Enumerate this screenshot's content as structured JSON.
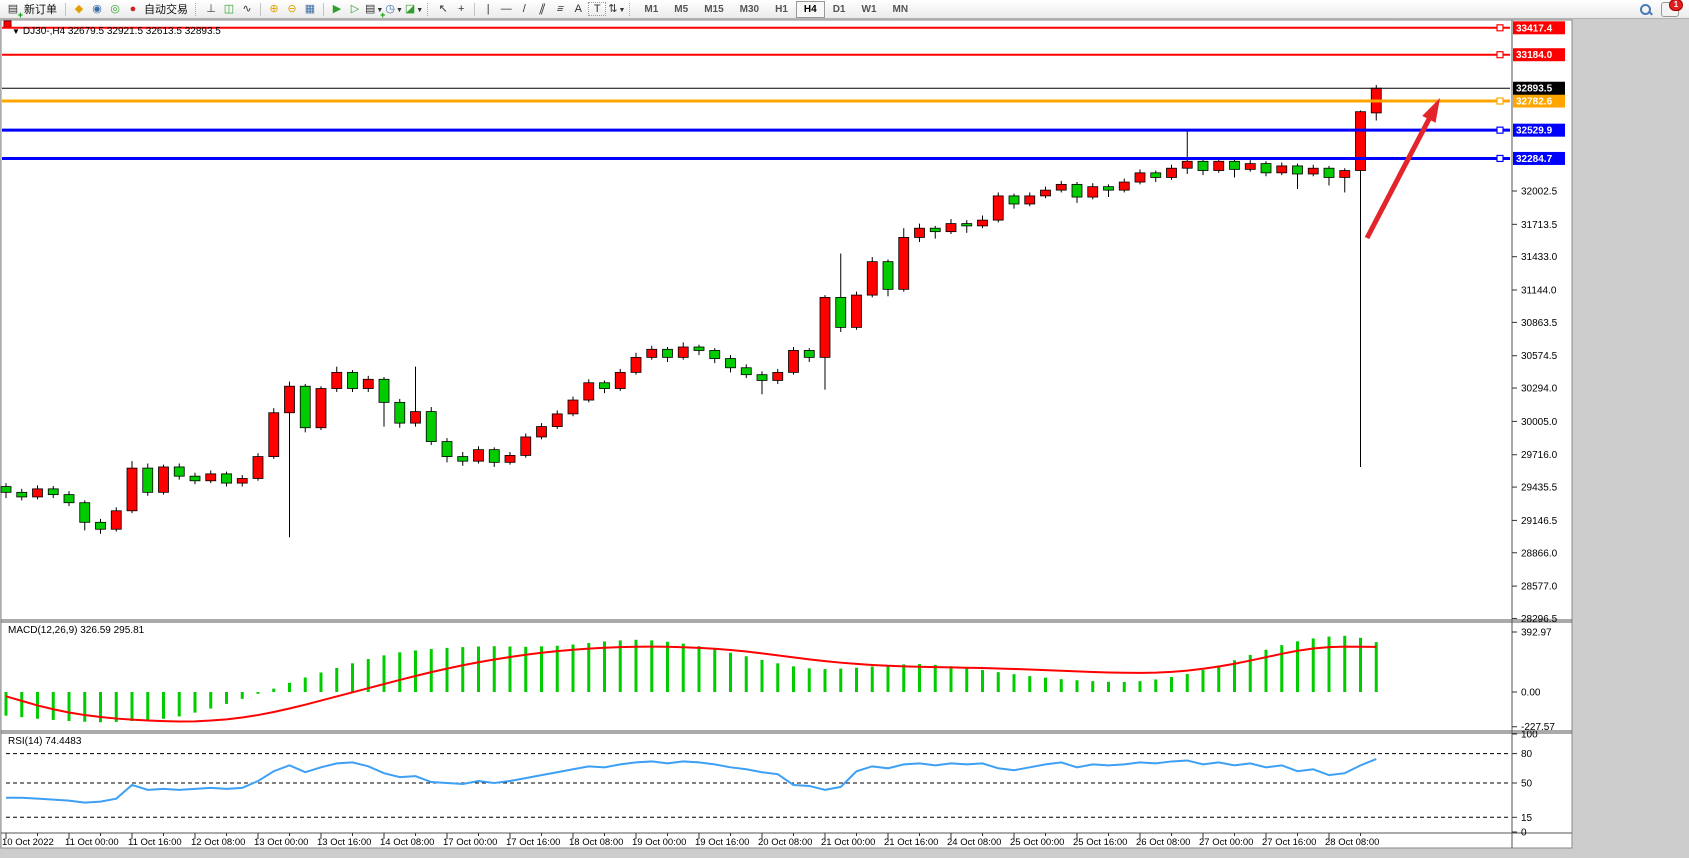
{
  "toolbar": {
    "new_order_label": "新订单",
    "auto_trading_label": "自动交易",
    "timeframes": [
      "M1",
      "M5",
      "M15",
      "M30",
      "H1",
      "H4",
      "D1",
      "W1",
      "MN"
    ],
    "active_timeframe": "H4",
    "notification_count": "1",
    "icons": {
      "new_order": "▤",
      "chart_wizard": "◆",
      "experts": "◉",
      "signals": "◎",
      "auto_trading": "●",
      "bar_chart": "⊥",
      "candle_chart": "◫",
      "line_chart": "∿",
      "zoom_in": "⊕",
      "zoom_out": "⊖",
      "tile_windows": "▦",
      "chart_shift": "▶",
      "auto_scroll": "▷",
      "new_chart": "▤",
      "clock": "◷",
      "chart_template": "◪",
      "cursor": "↖",
      "crosshair": "+",
      "vline": "|",
      "hline": "—",
      "trendline": "/",
      "channel": "∥",
      "fibonacci": "≡",
      "text": "A",
      "label": "T",
      "arrows": "⇅"
    }
  },
  "chart_data": {
    "type": "candlestick",
    "symbol": "DJ30-,H4",
    "ohlc_text": "32679.5 32921.5 32613.5 32893.5",
    "title": "DJ30-,H4  32679.5 32921.5 32613.5 32893.5",
    "colors": {
      "bull": "#ff0000",
      "bear": "#00cc00",
      "wick": "#000000",
      "level_red": "#ff0000",
      "level_orange": "#ffa500",
      "level_blue": "#0000ff",
      "bid_line": "#000000",
      "macd_hist": "#00cc00",
      "macd_signal": "#ff0000",
      "rsi_line": "#3da0f5",
      "arrow": "#e3242b"
    },
    "y_ticks": [
      32002.5,
      31713.5,
      31433.0,
      31144.0,
      30863.5,
      30574.5,
      30294.0,
      30005.0,
      29716.0,
      29435.5,
      29146.5,
      28866.0,
      28577.0,
      28296.5
    ],
    "price_levels": [
      {
        "price": 33417.4,
        "color": "#ff0000"
      },
      {
        "price": 33184.0,
        "color": "#ff0000"
      },
      {
        "price": 32782.6,
        "color": "#ffa500"
      },
      {
        "price": 32529.9,
        "color": "#0000ff"
      },
      {
        "price": 32284.7,
        "color": "#0000ff"
      }
    ],
    "bid_price": 32893.5,
    "x_labels": [
      "10 Oct 2022",
      "11 Oct 00:00",
      "11 Oct 16:00",
      "12 Oct 08:00",
      "13 Oct 00:00",
      "13 Oct 16:00",
      "14 Oct 08:00",
      "17 Oct 00:00",
      "17 Oct 16:00",
      "18 Oct 08:00",
      "19 Oct 00:00",
      "19 Oct 16:00",
      "20 Oct 08:00",
      "21 Oct 00:00",
      "21 Oct 16:00",
      "24 Oct 08:00",
      "25 Oct 00:00",
      "25 Oct 16:00",
      "26 Oct 08:00",
      "27 Oct 00:00",
      "27 Oct 16:00",
      "28 Oct 08:00"
    ],
    "x_label_bars": [
      0,
      4,
      8,
      12,
      16,
      20,
      24,
      28,
      32,
      36,
      40,
      44,
      48,
      52,
      56,
      60,
      64,
      68,
      72,
      76,
      80,
      84
    ],
    "bars": [
      [
        29440,
        29470,
        29340,
        29390
      ],
      [
        29390,
        29420,
        29320,
        29350
      ],
      [
        29350,
        29450,
        29330,
        29420
      ],
      [
        29420,
        29445,
        29340,
        29370
      ],
      [
        29370,
        29400,
        29270,
        29300
      ],
      [
        29300,
        29320,
        29060,
        29130
      ],
      [
        29130,
        29160,
        29030,
        29070
      ],
      [
        29070,
        29260,
        29050,
        29230
      ],
      [
        29230,
        29660,
        29210,
        29600
      ],
      [
        29600,
        29640,
        29360,
        29390
      ],
      [
        29390,
        29630,
        29370,
        29610
      ],
      [
        29610,
        29640,
        29500,
        29530
      ],
      [
        29530,
        29560,
        29460,
        29490
      ],
      [
        29490,
        29580,
        29470,
        29550
      ],
      [
        29550,
        29570,
        29440,
        29470
      ],
      [
        29470,
        29540,
        29440,
        29510
      ],
      [
        29510,
        29730,
        29490,
        29700
      ],
      [
        29700,
        30120,
        29680,
        30080
      ],
      [
        30080,
        30350,
        29000,
        30310
      ],
      [
        30310,
        30330,
        29910,
        29950
      ],
      [
        29950,
        30310,
        29930,
        30290
      ],
      [
        30290,
        30480,
        30260,
        30430
      ],
      [
        30430,
        30450,
        30260,
        30290
      ],
      [
        30290,
        30400,
        30260,
        30370
      ],
      [
        30370,
        30390,
        29960,
        30170
      ],
      [
        30170,
        30200,
        29950,
        29990
      ],
      [
        29990,
        30480,
        29960,
        30090
      ],
      [
        30090,
        30130,
        29800,
        29830
      ],
      [
        29830,
        29860,
        29650,
        29700
      ],
      [
        29700,
        29740,
        29620,
        29660
      ],
      [
        29660,
        29790,
        29640,
        29760
      ],
      [
        29760,
        29780,
        29610,
        29650
      ],
      [
        29650,
        29740,
        29630,
        29710
      ],
      [
        29710,
        29900,
        29690,
        29870
      ],
      [
        29870,
        29990,
        29850,
        29960
      ],
      [
        29960,
        30100,
        29940,
        30070
      ],
      [
        30070,
        30220,
        30050,
        30190
      ],
      [
        30190,
        30370,
        30170,
        30340
      ],
      [
        30340,
        30360,
        30250,
        30290
      ],
      [
        30290,
        30460,
        30270,
        30430
      ],
      [
        30430,
        30600,
        30410,
        30560
      ],
      [
        30560,
        30660,
        30540,
        30630
      ],
      [
        30630,
        30650,
        30520,
        30560
      ],
      [
        30560,
        30690,
        30540,
        30650
      ],
      [
        30650,
        30670,
        30580,
        30620
      ],
      [
        30620,
        30640,
        30510,
        30550
      ],
      [
        30550,
        30580,
        30430,
        30470
      ],
      [
        30470,
        30500,
        30380,
        30410
      ],
      [
        30410,
        30440,
        30240,
        30360
      ],
      [
        30360,
        30460,
        30330,
        30430
      ],
      [
        30430,
        30650,
        30410,
        30620
      ],
      [
        30620,
        30640,
        30520,
        30560
      ],
      [
        30560,
        31100,
        30280,
        31080
      ],
      [
        31080,
        31460,
        30780,
        30820
      ],
      [
        30820,
        31130,
        30800,
        31100
      ],
      [
        31100,
        31430,
        31080,
        31390
      ],
      [
        31390,
        31410,
        31090,
        31150
      ],
      [
        31150,
        31680,
        31130,
        31600
      ],
      [
        31600,
        31720,
        31560,
        31680
      ],
      [
        31680,
        31700,
        31590,
        31650
      ],
      [
        31650,
        31760,
        31630,
        31720
      ],
      [
        31720,
        31750,
        31640,
        31700
      ],
      [
        31700,
        31790,
        31680,
        31750
      ],
      [
        31750,
        31990,
        31730,
        31960
      ],
      [
        31960,
        31980,
        31850,
        31890
      ],
      [
        31890,
        31990,
        31870,
        31960
      ],
      [
        31960,
        32040,
        31940,
        32010
      ],
      [
        32010,
        32090,
        31990,
        32060
      ],
      [
        32060,
        32080,
        31900,
        31950
      ],
      [
        31950,
        32070,
        31930,
        32040
      ],
      [
        32040,
        32060,
        31950,
        32010
      ],
      [
        32010,
        32110,
        31990,
        32080
      ],
      [
        32080,
        32190,
        32060,
        32160
      ],
      [
        32160,
        32180,
        32080,
        32120
      ],
      [
        32120,
        32230,
        32100,
        32200
      ],
      [
        32200,
        32530,
        32150,
        32260
      ],
      [
        32260,
        32280,
        32140,
        32180
      ],
      [
        32180,
        32290,
        32160,
        32260
      ],
      [
        32260,
        32280,
        32120,
        32190
      ],
      [
        32190,
        32270,
        32170,
        32240
      ],
      [
        32240,
        32260,
        32130,
        32160
      ],
      [
        32160,
        32250,
        32140,
        32220
      ],
      [
        32220,
        32240,
        32020,
        32150
      ],
      [
        32150,
        32230,
        32130,
        32200
      ],
      [
        32200,
        32220,
        32050,
        32120
      ],
      [
        32120,
        32200,
        31990,
        32180
      ],
      [
        32180,
        32700,
        29610,
        32690
      ],
      [
        32679.5,
        32921.5,
        32613.5,
        32893.5
      ]
    ],
    "indicators": {
      "macd": {
        "name": "MACD(12,26,9)",
        "main_value": "326.59",
        "signal_value": "295.81",
        "scale": [
          {
            "label": "392.97",
            "value": 392.97
          },
          {
            "label": "0.00",
            "value": 0
          },
          {
            "label": "-227.57",
            "value": -227.57
          }
        ],
        "histogram": [
          -155,
          -165,
          -175,
          -183,
          -190,
          -195,
          -198,
          -196,
          -190,
          -183,
          -175,
          -160,
          -135,
          -108,
          -78,
          -45,
          -12,
          22,
          60,
          95,
          128,
          158,
          188,
          216,
          240,
          260,
          272,
          281,
          289,
          294,
          298,
          300,
          298,
          296,
          299,
          303,
          311,
          321,
          331,
          338,
          342,
          338,
          329,
          317,
          300,
          280,
          257,
          234,
          210,
          188,
          168,
          155,
          150,
          153,
          159,
          167,
          175,
          181,
          183,
          178,
          169,
          157,
          144,
          130,
          117,
          104,
          94,
          84,
          77,
          71,
          67,
          66,
          71,
          82,
          98,
          118,
          144,
          174,
          208,
          243,
          277,
          307,
          332,
          351,
          363,
          368,
          355,
          326.59
        ],
        "signal": [
          -28,
          -58,
          -88,
          -113,
          -134,
          -151,
          -164,
          -174,
          -181,
          -187,
          -191,
          -193,
          -192,
          -187,
          -179,
          -167,
          -151,
          -131,
          -108,
          -83,
          -56,
          -29,
          -2,
          25,
          52,
          79,
          105,
          130,
          153,
          175,
          195,
          213,
          229,
          244,
          257,
          268,
          277,
          284,
          290,
          294,
          296,
          297,
          296,
          293,
          289,
          283,
          275,
          265,
          253,
          240,
          227,
          214,
          202,
          192,
          184,
          177,
          172,
          168,
          165,
          163,
          161,
          159,
          157,
          154,
          151,
          147,
          143,
          139,
          135,
          131,
          128,
          126,
          125,
          127,
          132,
          140,
          152,
          167,
          185,
          206,
          228,
          250,
          270,
          285,
          294,
          297,
          296,
          295.81
        ]
      },
      "rsi": {
        "name": "RSI(14)",
        "value": "74.4483",
        "scale": [
          {
            "label": "100",
            "value": 100
          },
          {
            "label": "80",
            "value": 80
          },
          {
            "label": "50",
            "value": 50
          },
          {
            "label": "15",
            "value": 15
          },
          {
            "label": "0",
            "value": 0
          }
        ],
        "dashed_levels": [
          80,
          50,
          15
        ],
        "series": [
          35,
          35,
          34,
          33,
          32,
          30,
          31,
          34,
          48,
          43,
          44,
          43,
          44,
          45,
          44,
          45,
          52,
          62,
          68,
          61,
          66,
          70,
          71,
          67,
          60,
          56,
          57,
          51,
          50,
          49,
          52,
          50,
          52,
          55,
          58,
          61,
          64,
          67,
          66,
          69,
          71,
          72,
          70,
          72,
          71,
          69,
          66,
          64,
          61,
          59,
          48,
          47,
          43,
          46,
          62,
          67,
          65,
          69,
          70,
          68,
          70,
          69,
          70,
          65,
          63,
          66,
          69,
          71,
          66,
          69,
          68,
          69,
          71,
          70,
          72,
          73,
          69,
          71,
          68,
          70,
          66,
          68,
          62,
          64,
          58,
          60,
          68,
          74.4483
        ]
      }
    },
    "annotations": [
      {
        "type": "arrow",
        "color": "#e3242b",
        "from": [
          1367,
          238
        ],
        "to": [
          1440,
          98
        ]
      }
    ]
  }
}
